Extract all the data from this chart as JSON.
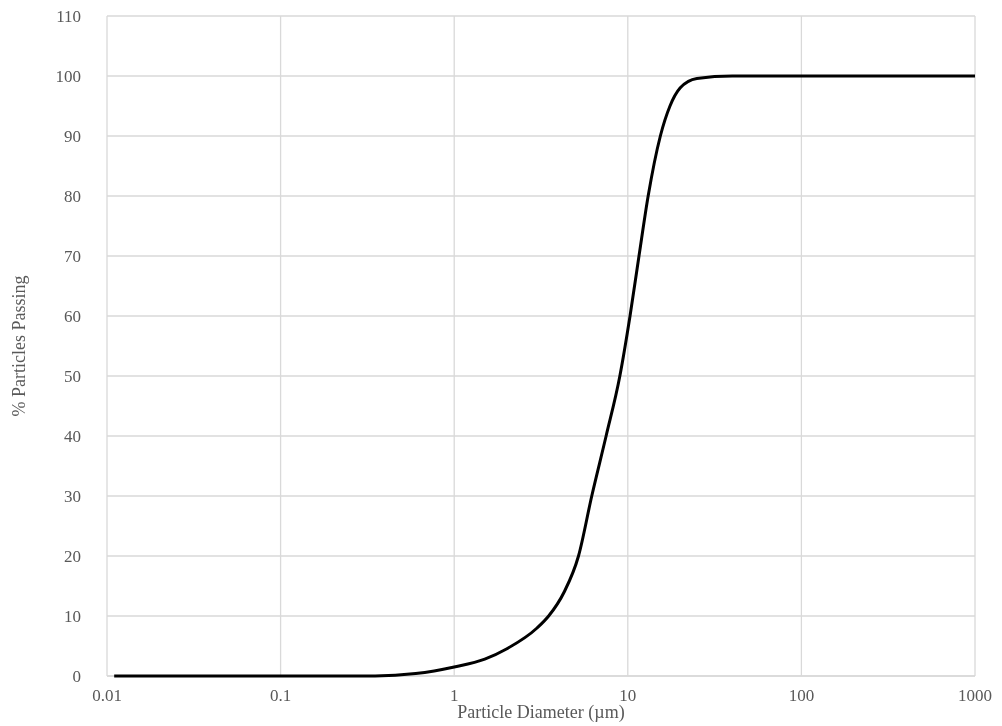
{
  "chart_data": {
    "type": "line",
    "xlabel": "Particle Diameter (µm)",
    "ylabel": "% Particles Passing",
    "log": "x",
    "grid": true,
    "marker": "none",
    "line_style": "solid",
    "xlim": [
      0.01,
      1000
    ],
    "xticks": [
      0.01,
      0.1,
      1,
      10,
      100,
      1000
    ],
    "ylim": [
      0,
      110
    ],
    "yticks": [
      0,
      10,
      20,
      30,
      40,
      50,
      60,
      70,
      80,
      90,
      100,
      110
    ],
    "series": [
      {
        "color": "#000000",
        "x": [
          0.011,
          0.35,
          0.6,
          1,
          1.5,
          2,
          3,
          3.5,
          4.3,
          5.2,
          6.2,
          7.5,
          9,
          10.3,
          11.6,
          13.1,
          15.4,
          17.5,
          20,
          25,
          40,
          1000
        ],
        "values": [
          0,
          0,
          0.4,
          1.5,
          2.8,
          4.5,
          8,
          10,
          14,
          20,
          30,
          40,
          50,
          60,
          70,
          80,
          90,
          95,
          98,
          99.6,
          100,
          100
        ]
      }
    ]
  }
}
